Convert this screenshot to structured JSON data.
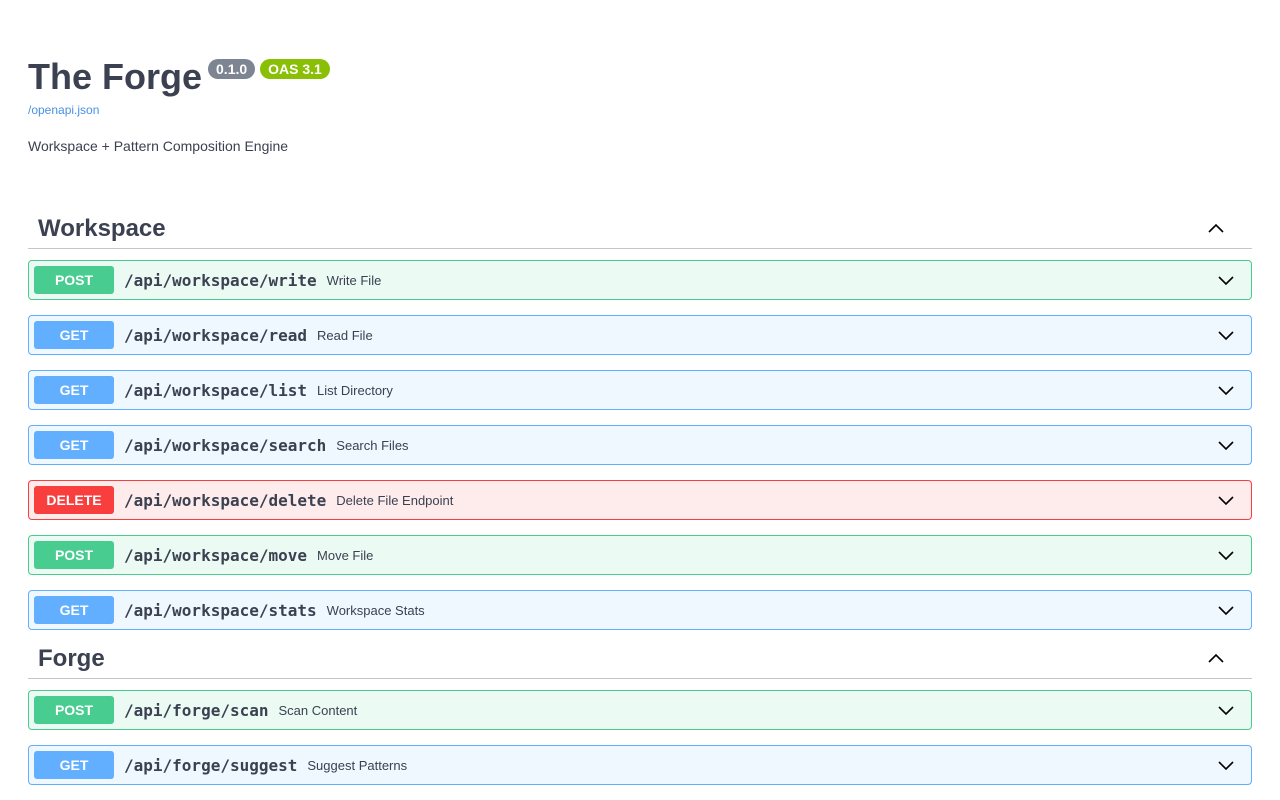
{
  "info": {
    "title": "The Forge",
    "version": "0.1.0",
    "oas": "OAS 3.1",
    "spec_link": "/openapi.json",
    "description": "Workspace + Pattern Composition Engine"
  },
  "colors": {
    "post": "#49cc90",
    "get": "#61affe",
    "delete": "#f93e3e",
    "version_badge": "#7d8492",
    "oas_badge": "#89bf04",
    "link": "#4990e2"
  },
  "tags": [
    {
      "name": "Workspace",
      "expanded": true,
      "operations": [
        {
          "method": "POST",
          "path": "/api/workspace/write",
          "summary": "Write File"
        },
        {
          "method": "GET",
          "path": "/api/workspace/read",
          "summary": "Read File"
        },
        {
          "method": "GET",
          "path": "/api/workspace/list",
          "summary": "List Directory"
        },
        {
          "method": "GET",
          "path": "/api/workspace/search",
          "summary": "Search Files"
        },
        {
          "method": "DELETE",
          "path": "/api/workspace/delete",
          "summary": "Delete File Endpoint"
        },
        {
          "method": "POST",
          "path": "/api/workspace/move",
          "summary": "Move File"
        },
        {
          "method": "GET",
          "path": "/api/workspace/stats",
          "summary": "Workspace Stats"
        }
      ]
    },
    {
      "name": "Forge",
      "expanded": true,
      "operations": [
        {
          "method": "POST",
          "path": "/api/forge/scan",
          "summary": "Scan Content"
        },
        {
          "method": "GET",
          "path": "/api/forge/suggest",
          "summary": "Suggest Patterns"
        }
      ]
    }
  ]
}
